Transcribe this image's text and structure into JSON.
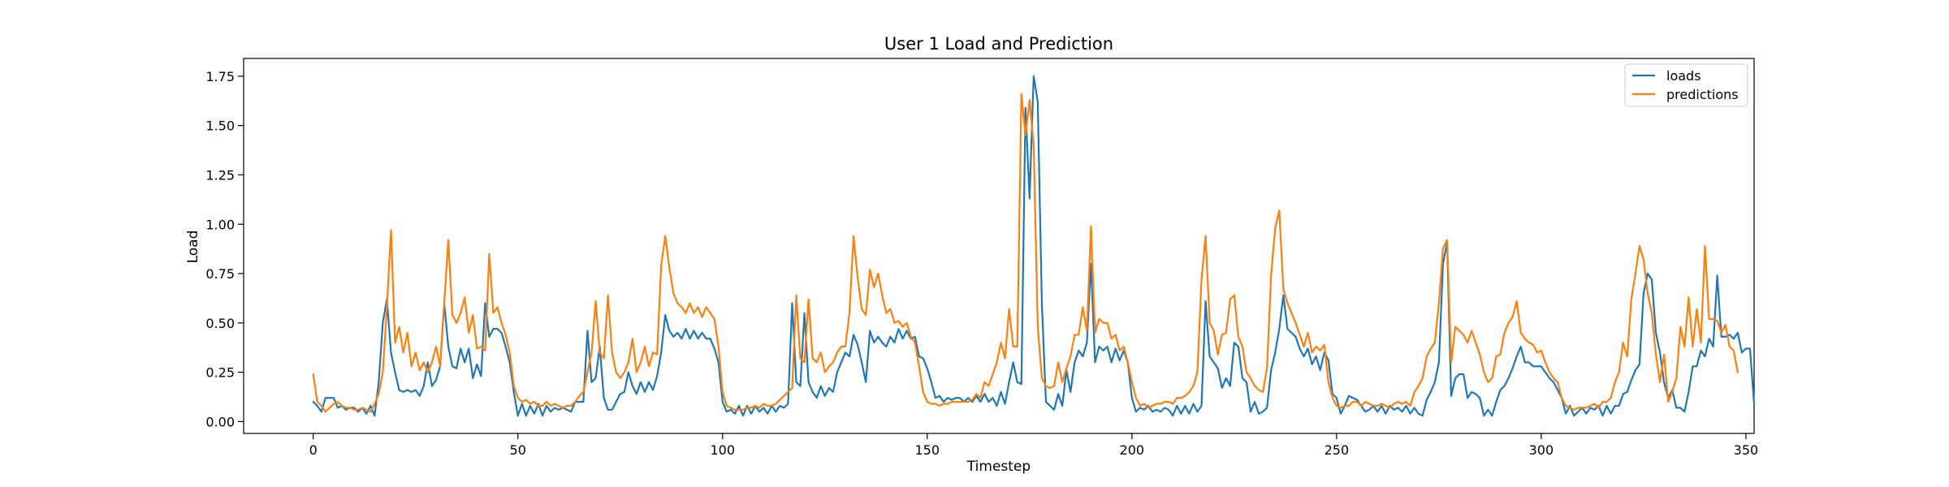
{
  "chart_data": {
    "type": "line",
    "title": "User 1 Load and Prediction",
    "xlabel": "Timestep",
    "ylabel": "Load",
    "xlim": [
      -17,
      352
    ],
    "ylim": [
      -0.06,
      1.84
    ],
    "xticks": [
      0,
      50,
      100,
      150,
      200,
      250,
      300,
      350
    ],
    "yticks": [
      0.0,
      0.25,
      0.5,
      0.75,
      1.0,
      1.25,
      1.5,
      1.75
    ],
    "xtick_labels": [
      "0",
      "50",
      "100",
      "150",
      "200",
      "250",
      "300",
      "350"
    ],
    "ytick_labels": [
      "0.00",
      "0.25",
      "0.50",
      "0.75",
      "1.00",
      "1.25",
      "1.50",
      "1.75"
    ],
    "grid": false,
    "legend_position": "top-right",
    "series": [
      {
        "name": "loads",
        "color": "#1f77b4",
        "values": [
          0.1,
          0.08,
          0.05,
          0.12,
          0.12,
          0.12,
          0.07,
          0.08,
          0.06,
          0.07,
          0.07,
          0.05,
          0.07,
          0.04,
          0.08,
          0.03,
          0.2,
          0.5,
          0.62,
          0.35,
          0.25,
          0.16,
          0.15,
          0.16,
          0.15,
          0.16,
          0.13,
          0.18,
          0.3,
          0.18,
          0.21,
          0.28,
          0.6,
          0.38,
          0.28,
          0.27,
          0.37,
          0.3,
          0.37,
          0.22,
          0.29,
          0.23,
          0.6,
          0.43,
          0.47,
          0.47,
          0.45,
          0.38,
          0.3,
          0.15,
          0.03,
          0.09,
          0.03,
          0.08,
          0.04,
          0.09,
          0.03,
          0.08,
          0.05,
          0.07,
          0.06,
          0.07,
          0.06,
          0.05,
          0.1,
          0.1,
          0.1,
          0.46,
          0.2,
          0.22,
          0.38,
          0.12,
          0.06,
          0.06,
          0.1,
          0.14,
          0.15,
          0.25,
          0.18,
          0.14,
          0.2,
          0.15,
          0.2,
          0.16,
          0.23,
          0.35,
          0.54,
          0.46,
          0.43,
          0.45,
          0.42,
          0.47,
          0.42,
          0.46,
          0.42,
          0.45,
          0.42,
          0.42,
          0.37,
          0.3,
          0.1,
          0.05,
          0.06,
          0.04,
          0.08,
          0.03,
          0.08,
          0.04,
          0.08,
          0.05,
          0.07,
          0.04,
          0.08,
          0.05,
          0.08,
          0.07,
          0.09,
          0.6,
          0.2,
          0.18,
          0.55,
          0.2,
          0.15,
          0.12,
          0.18,
          0.13,
          0.17,
          0.15,
          0.25,
          0.3,
          0.35,
          0.33,
          0.44,
          0.39,
          0.3,
          0.2,
          0.46,
          0.4,
          0.43,
          0.4,
          0.38,
          0.43,
          0.4,
          0.47,
          0.42,
          0.46,
          0.42,
          0.43,
          0.33,
          0.32,
          0.27,
          0.2,
          0.12,
          0.13,
          0.1,
          0.12,
          0.11,
          0.12,
          0.12,
          0.1,
          0.12,
          0.1,
          0.13,
          0.1,
          0.14,
          0.1,
          0.12,
          0.08,
          0.15,
          0.09,
          0.2,
          0.3,
          0.2,
          0.19,
          1.59,
          1.13,
          1.75,
          1.62,
          0.6,
          0.1,
          0.08,
          0.06,
          0.14,
          0.08,
          0.26,
          0.15,
          0.3,
          0.36,
          0.33,
          0.4,
          0.8,
          0.3,
          0.38,
          0.36,
          0.38,
          0.3,
          0.37,
          0.31,
          0.36,
          0.3,
          0.12,
          0.05,
          0.07,
          0.06,
          0.08,
          0.05,
          0.06,
          0.05,
          0.07,
          0.06,
          0.03,
          0.08,
          0.04,
          0.08,
          0.04,
          0.09,
          0.05,
          0.08,
          0.61,
          0.33,
          0.3,
          0.27,
          0.17,
          0.22,
          0.18,
          0.4,
          0.38,
          0.22,
          0.2,
          0.05,
          0.1,
          0.04,
          0.05,
          0.07,
          0.26,
          0.35,
          0.47,
          0.64,
          0.47,
          0.45,
          0.43,
          0.37,
          0.33,
          0.37,
          0.29,
          0.33,
          0.26,
          0.35,
          0.31,
          0.14,
          0.12,
          0.04,
          0.08,
          0.13,
          0.12,
          0.11,
          0.08,
          0.05,
          0.06,
          0.08,
          0.05,
          0.08,
          0.04,
          0.08,
          0.06,
          0.07,
          0.05,
          0.08,
          0.04,
          0.07,
          0.04,
          0.03,
          0.11,
          0.15,
          0.2,
          0.3,
          0.8,
          0.91,
          0.13,
          0.22,
          0.24,
          0.24,
          0.12,
          0.15,
          0.14,
          0.12,
          0.03,
          0.06,
          0.03,
          0.1,
          0.16,
          0.18,
          0.22,
          0.27,
          0.33,
          0.38,
          0.3,
          0.3,
          0.28,
          0.28,
          0.28,
          0.25,
          0.22,
          0.2,
          0.16,
          0.12,
          0.04,
          0.08,
          0.03,
          0.05,
          0.07,
          0.04,
          0.07,
          0.06,
          0.08,
          0.03,
          0.08,
          0.04,
          0.08,
          0.08,
          0.14,
          0.15,
          0.21,
          0.26,
          0.29,
          0.65,
          0.75,
          0.72,
          0.45,
          0.35,
          0.2,
          0.12,
          0.16,
          0.07,
          0.07,
          0.05,
          0.15,
          0.28,
          0.28,
          0.36,
          0.33,
          0.42,
          0.38,
          0.74,
          0.43,
          0.43,
          0.44,
          0.42,
          0.45,
          0.35,
          0.37,
          0.37,
          0.09
        ]
      },
      {
        "name": "predictions",
        "color": "#ff7f0e",
        "values": [
          0.24,
          0.1,
          0.08,
          0.05,
          0.07,
          0.09,
          0.1,
          0.08,
          0.07,
          0.07,
          0.06,
          0.06,
          0.07,
          0.06,
          0.05,
          0.09,
          0.14,
          0.25,
          0.58,
          0.97,
          0.4,
          0.48,
          0.35,
          0.45,
          0.28,
          0.35,
          0.26,
          0.3,
          0.25,
          0.3,
          0.38,
          0.28,
          0.6,
          0.92,
          0.54,
          0.5,
          0.55,
          0.63,
          0.45,
          0.54,
          0.37,
          0.38,
          0.36,
          0.85,
          0.55,
          0.58,
          0.5,
          0.44,
          0.35,
          0.18,
          0.12,
          0.1,
          0.11,
          0.09,
          0.1,
          0.08,
          0.08,
          0.1,
          0.08,
          0.09,
          0.08,
          0.07,
          0.08,
          0.08,
          0.1,
          0.13,
          0.15,
          0.25,
          0.35,
          0.61,
          0.35,
          0.32,
          0.64,
          0.35,
          0.25,
          0.22,
          0.25,
          0.3,
          0.42,
          0.25,
          0.3,
          0.38,
          0.28,
          0.35,
          0.34,
          0.79,
          0.94,
          0.78,
          0.65,
          0.6,
          0.58,
          0.55,
          0.6,
          0.55,
          0.58,
          0.53,
          0.58,
          0.55,
          0.52,
          0.38,
          0.15,
          0.08,
          0.07,
          0.06,
          0.06,
          0.06,
          0.07,
          0.07,
          0.08,
          0.07,
          0.09,
          0.08,
          0.08,
          0.09,
          0.11,
          0.13,
          0.15,
          0.17,
          0.64,
          0.32,
          0.3,
          0.62,
          0.32,
          0.3,
          0.35,
          0.25,
          0.28,
          0.3,
          0.35,
          0.38,
          0.38,
          0.55,
          0.94,
          0.73,
          0.57,
          0.54,
          0.77,
          0.68,
          0.75,
          0.64,
          0.55,
          0.57,
          0.5,
          0.51,
          0.48,
          0.5,
          0.43,
          0.4,
          0.28,
          0.15,
          0.1,
          0.09,
          0.09,
          0.08,
          0.09,
          0.09,
          0.1,
          0.1,
          0.1,
          0.1,
          0.1,
          0.11,
          0.14,
          0.12,
          0.2,
          0.18,
          0.24,
          0.3,
          0.4,
          0.32,
          0.57,
          0.38,
          0.38,
          1.66,
          1.45,
          1.63,
          1.4,
          0.48,
          0.22,
          0.18,
          0.17,
          0.18,
          0.3,
          0.2,
          0.27,
          0.33,
          0.44,
          0.44,
          0.58,
          0.46,
          0.99,
          0.45,
          0.52,
          0.5,
          0.5,
          0.42,
          0.44,
          0.36,
          0.38,
          0.3,
          0.2,
          0.12,
          0.08,
          0.09,
          0.07,
          0.08,
          0.09,
          0.09,
          0.1,
          0.1,
          0.09,
          0.12,
          0.12,
          0.13,
          0.15,
          0.18,
          0.25,
          0.72,
          0.94,
          0.5,
          0.46,
          0.34,
          0.44,
          0.45,
          0.62,
          0.64,
          0.43,
          0.38,
          0.25,
          0.22,
          0.18,
          0.16,
          0.15,
          0.27,
          0.74,
          0.98,
          1.07,
          0.67,
          0.6,
          0.55,
          0.5,
          0.44,
          0.38,
          0.45,
          0.35,
          0.38,
          0.36,
          0.39,
          0.2,
          0.12,
          0.08,
          0.07,
          0.08,
          0.08,
          0.1,
          0.1,
          0.08,
          0.1,
          0.09,
          0.08,
          0.08,
          0.09,
          0.08,
          0.07,
          0.09,
          0.1,
          0.09,
          0.1,
          0.08,
          0.15,
          0.18,
          0.22,
          0.33,
          0.37,
          0.4,
          0.6,
          0.88,
          0.92,
          0.3,
          0.48,
          0.46,
          0.44,
          0.4,
          0.46,
          0.4,
          0.34,
          0.25,
          0.2,
          0.22,
          0.33,
          0.34,
          0.45,
          0.5,
          0.53,
          0.61,
          0.45,
          0.42,
          0.4,
          0.39,
          0.35,
          0.36,
          0.3,
          0.25,
          0.22,
          0.2,
          0.12,
          0.08,
          0.07,
          0.06,
          0.07,
          0.07,
          0.07,
          0.08,
          0.09,
          0.07,
          0.1,
          0.1,
          0.12,
          0.2,
          0.25,
          0.4,
          0.33,
          0.62,
          0.75,
          0.89,
          0.82,
          0.65,
          0.55,
          0.34,
          0.2,
          0.34,
          0.1,
          0.15,
          0.22,
          0.48,
          0.38,
          0.63,
          0.38,
          0.57,
          0.4,
          0.89,
          0.52,
          0.52,
          0.51,
          0.45,
          0.49,
          0.38,
          0.36,
          0.25
        ]
      }
    ]
  }
}
